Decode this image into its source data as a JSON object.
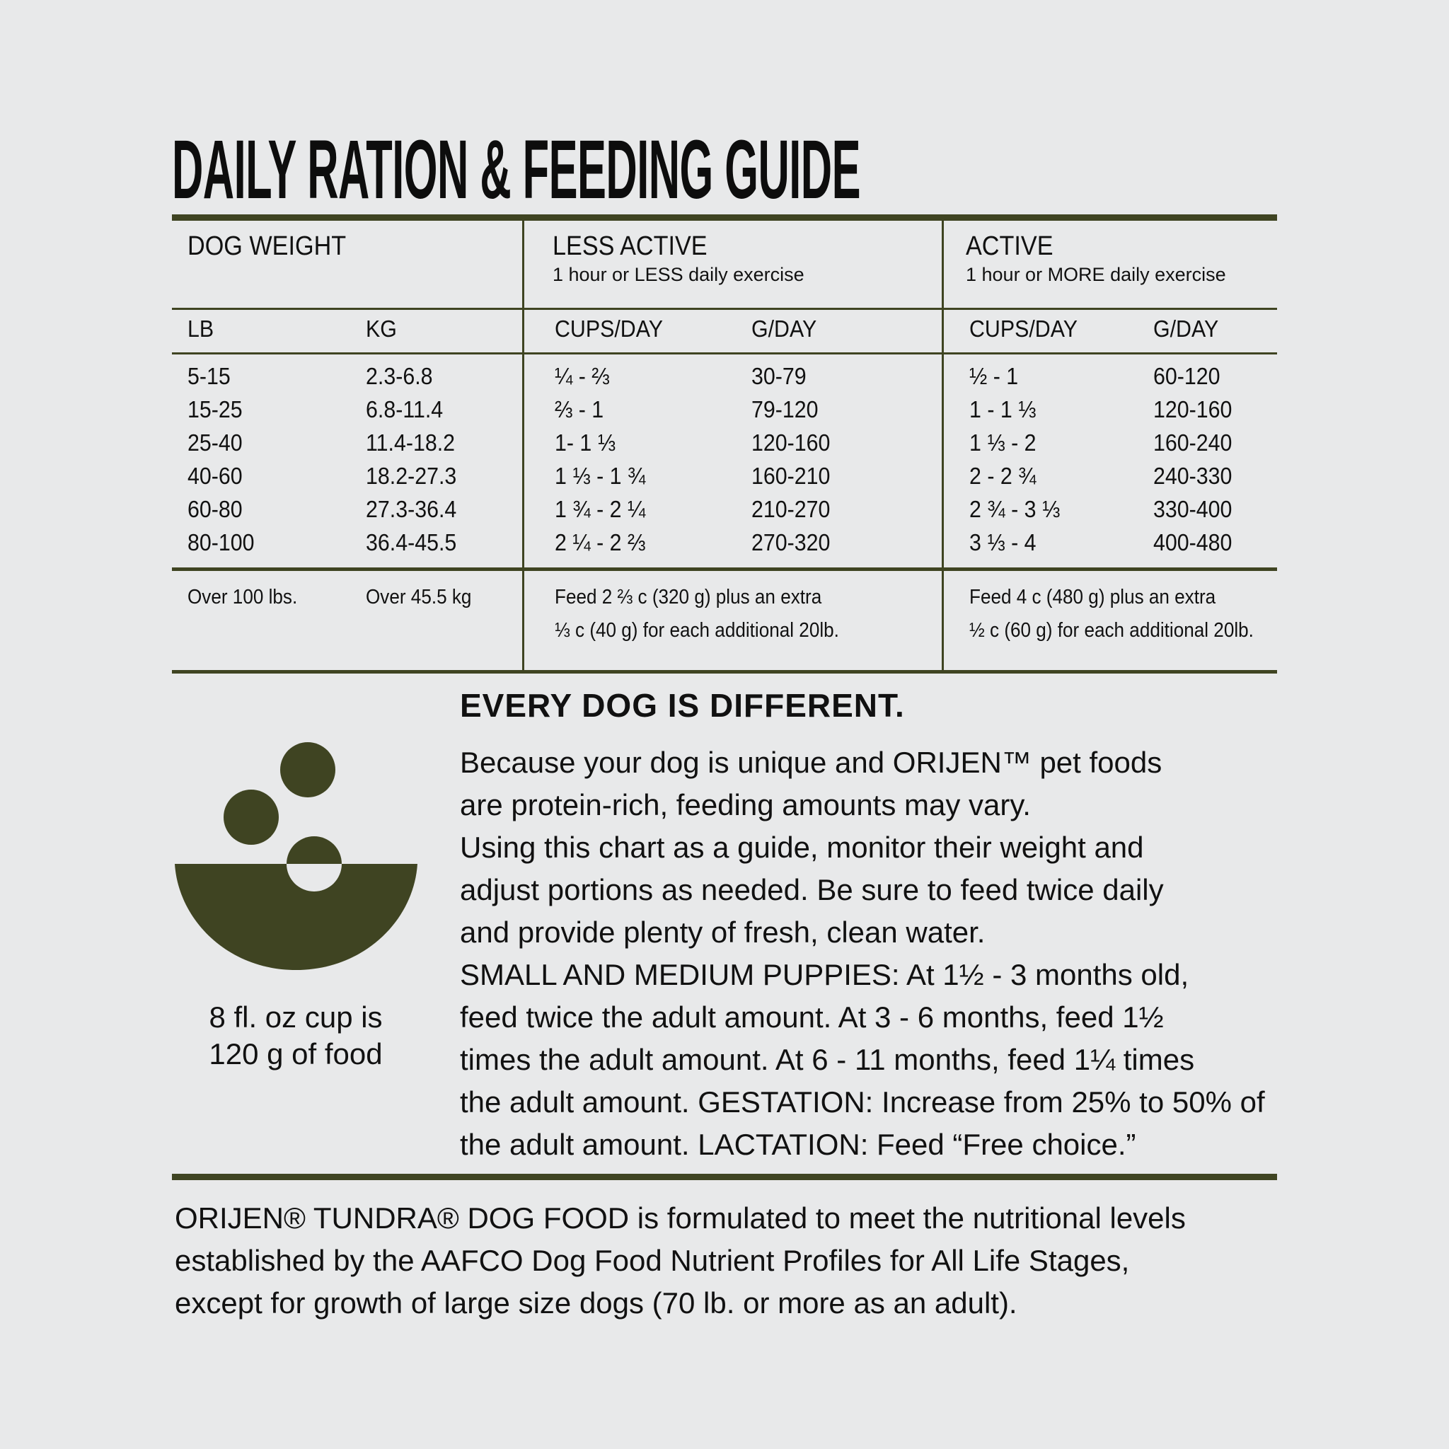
{
  "title": "DAILY RATION & FEEDING GUIDE",
  "colors": {
    "accent": "#3f4422",
    "background": "#e8e9ea",
    "text": "#111111"
  },
  "table": {
    "groups": [
      {
        "label": "DOG WEIGHT",
        "sub": ""
      },
      {
        "label": "LESS ACTIVE",
        "sub": "1 hour or LESS daily exercise"
      },
      {
        "label": "ACTIVE",
        "sub": "1 hour or MORE daily exercise"
      }
    ],
    "columns": [
      "LB",
      "KG",
      "CUPS/DAY",
      "G/DAY",
      "CUPS/DAY",
      "G/DAY"
    ],
    "rows": [
      [
        "5-15",
        "2.3-6.8",
        "¼ - ⅔",
        "30-79",
        "½ - 1",
        "60-120"
      ],
      [
        "15-25",
        "6.8-11.4",
        "⅔ - 1",
        "79-120",
        "1 - 1 ⅓",
        "120-160"
      ],
      [
        "25-40",
        "11.4-18.2",
        "1- 1 ⅓",
        "120-160",
        "1 ⅓ - 2",
        "160-240"
      ],
      [
        "40-60",
        "18.2-27.3",
        "1 ⅓ - 1 ¾",
        "160-210",
        "2 - 2 ¾",
        "240-330"
      ],
      [
        "60-80",
        "27.3-36.4",
        "1 ¾ - 2 ¼",
        "210-270",
        "2 ¾ - 3 ⅓",
        "330-400"
      ],
      [
        "80-100",
        "36.4-45.5",
        "2 ¼ - 2 ⅔",
        "270-320",
        "3 ⅓ - 4",
        "400-480"
      ]
    ],
    "over": {
      "lb": "Over 100 lbs.",
      "kg": "Over 45.5 kg",
      "less_active": [
        "Feed 2 ⅔ c (320 g) plus an extra",
        "⅓ c (40 g) for each additional 20lb."
      ],
      "active": [
        "Feed 4 c (480 g) plus an extra",
        "½ c (60 g) for each additional 20lb."
      ]
    }
  },
  "icon": {
    "name": "food-bowl-icon",
    "caption": [
      "8 fl. oz cup is",
      "120 g of food"
    ]
  },
  "every_dog": {
    "heading": "EVERY DOG IS DIFFERENT.",
    "lines": [
      "Because your dog is unique and ORIJEN™ pet foods",
      "are protein-rich, feeding amounts may vary.",
      "Using this chart as a guide, monitor their weight and",
      "adjust portions as needed. Be sure to feed twice daily",
      "and provide plenty of fresh, clean water.",
      "SMALL AND MEDIUM PUPPIES: At 1½ - 3 months old,",
      "feed twice the adult amount. At 3 - 6 months, feed 1½",
      "times the adult amount. At 6 - 11 months, feed 1¼ times",
      "the adult amount. GESTATION: Increase from 25% to 50% of",
      "the adult amount. LACTATION: Feed “Free choice.”"
    ]
  },
  "footer": {
    "lines": [
      "ORIJEN® TUNDRA® DOG FOOD is formulated to meet the nutritional levels",
      "established by the AAFCO Dog Food Nutrient Profiles for All Life Stages,",
      "except for growth of large size dogs (70 lb. or more as an adult)."
    ]
  }
}
